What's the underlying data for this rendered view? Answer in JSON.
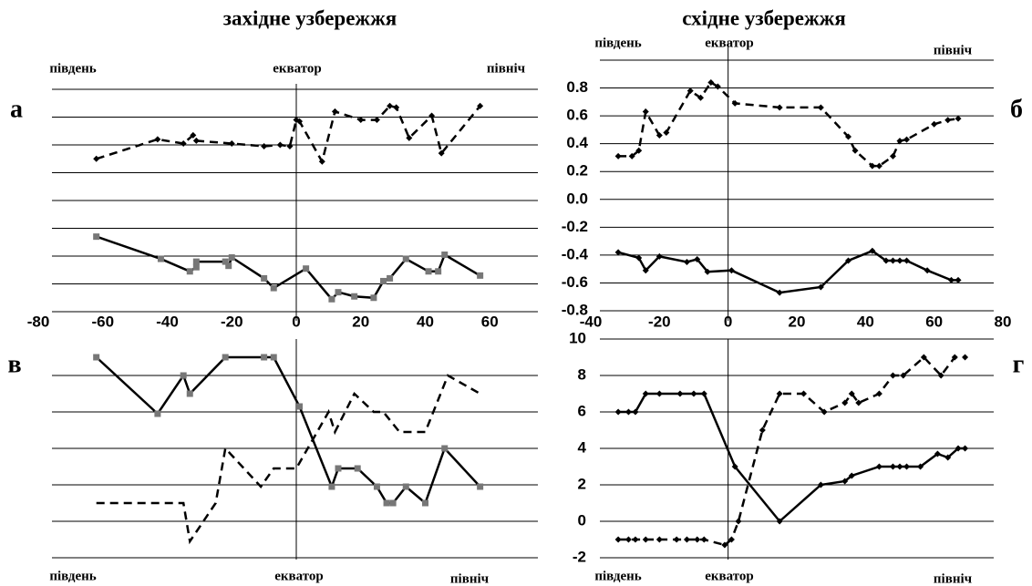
{
  "column_titles": [
    "західне узбережжя",
    "східне узбережжя"
  ],
  "chart_data": [
    {
      "type": "line",
      "label": "а",
      "annotations": [
        "південь",
        "екватор",
        "північ"
      ],
      "xlim": [
        -80,
        80
      ],
      "xticks": [
        -80,
        -60,
        -40,
        -20,
        0,
        20,
        40,
        60
      ],
      "ylim": [
        -0.8,
        0.8
      ],
      "hgrid": [
        -0.8,
        -0.6,
        -0.4,
        -0.2,
        0,
        0.2,
        0.4,
        0.6,
        0.8
      ],
      "reference_x": 0,
      "series": [
        {
          "color": "#000000",
          "dash": true,
          "marker": "diamond",
          "x": [
            -62,
            -43,
            -35,
            -32,
            -31,
            -20,
            -10,
            -5,
            -2,
            0,
            1,
            8,
            12,
            20,
            25,
            29,
            31,
            35,
            42,
            45,
            57
          ],
          "values": [
            0.3,
            0.44,
            0.41,
            0.47,
            0.43,
            0.41,
            0.39,
            0.4,
            0.39,
            0.58,
            0.57,
            0.28,
            0.64,
            0.58,
            0.58,
            0.68,
            0.67,
            0.45,
            0.61,
            0.34,
            0.68
          ]
        },
        {
          "color": "#000000",
          "dash": false,
          "marker": "square",
          "x": [
            -62,
            -42,
            -33,
            -31,
            -31,
            -22,
            -21,
            -20,
            -10,
            -7,
            3,
            11,
            13,
            18,
            24,
            27,
            29,
            34,
            41,
            44,
            46,
            57
          ],
          "values": [
            -0.26,
            -0.42,
            -0.51,
            -0.48,
            -0.44,
            -0.44,
            -0.47,
            -0.41,
            -0.56,
            -0.63,
            -0.49,
            -0.71,
            -0.66,
            -0.69,
            -0.7,
            -0.58,
            -0.56,
            -0.42,
            -0.51,
            -0.51,
            -0.39,
            -0.54
          ]
        }
      ]
    },
    {
      "type": "line",
      "label": "б",
      "annotations": [
        "південь",
        "екватор",
        "північ"
      ],
      "xlim": [
        -40,
        80
      ],
      "xticks": [
        -40,
        -20,
        0,
        20,
        40,
        60,
        80
      ],
      "ylim": [
        -0.8,
        1.0
      ],
      "yticks": [
        -0.8,
        -0.6,
        -0.4,
        -0.2,
        {
          "value": 0,
          "label": "0.0"
        },
        0.2,
        0.4,
        0.6,
        0.8
      ],
      "reference_x": 0,
      "series": [
        {
          "color": "#000000",
          "dash": true,
          "marker": "diamond",
          "x": [
            -32,
            -28,
            -26,
            -24,
            -20,
            -18,
            -11,
            -8,
            -5,
            -3,
            2,
            15,
            27,
            35,
            37,
            42,
            44,
            48,
            50,
            52,
            60,
            64,
            67
          ],
          "values": [
            0.31,
            0.31,
            0.35,
            0.63,
            0.46,
            0.48,
            0.78,
            0.73,
            0.84,
            0.81,
            0.69,
            0.66,
            0.66,
            0.45,
            0.35,
            0.24,
            0.24,
            0.31,
            0.42,
            0.43,
            0.54,
            0.57,
            0.58
          ]
        },
        {
          "color": "#000000",
          "dash": false,
          "marker": "diamond",
          "x": [
            -32,
            -26,
            -24,
            -20,
            -12,
            -9,
            -6,
            1,
            15,
            27,
            35,
            42,
            46,
            48,
            50,
            52,
            58,
            65,
            67
          ],
          "values": [
            -0.38,
            -0.42,
            -0.51,
            -0.41,
            -0.45,
            -0.43,
            -0.52,
            -0.51,
            -0.67,
            -0.63,
            -0.44,
            -0.37,
            -0.44,
            -0.44,
            -0.44,
            -0.44,
            -0.51,
            -0.58,
            -0.58
          ]
        }
      ]
    },
    {
      "type": "line",
      "label": "в",
      "annotations": [
        "південь",
        "екватор",
        "північ"
      ],
      "xlim": [
        -80,
        80
      ],
      "ylim": [
        -2,
        10
      ],
      "hgrid": [
        -2,
        0,
        2,
        4,
        6,
        8
      ],
      "reference_x": 0,
      "series": [
        {
          "color": "#000000",
          "dash": false,
          "marker": "square",
          "x": [
            -62,
            -43,
            -35,
            -33,
            -22,
            -10,
            -7,
            1,
            11,
            13,
            19,
            25,
            28,
            30,
            34,
            40,
            46,
            57
          ],
          "values": [
            9,
            5.9,
            8,
            7,
            9,
            9,
            9,
            6.3,
            1.9,
            2.9,
            2.9,
            1.9,
            1,
            1,
            1.9,
            1,
            4,
            1.9
          ]
        },
        {
          "color": "#000000",
          "dash": true,
          "marker": "none",
          "x": [
            -62,
            -43,
            -35,
            -33,
            -25,
            -22,
            -11,
            -7,
            0,
            10,
            12,
            18,
            24,
            27,
            32,
            40,
            47,
            57
          ],
          "values": [
            1,
            1,
            1,
            -1.1,
            1,
            4,
            1.9,
            2.9,
            2.9,
            6,
            4.9,
            7,
            6,
            6,
            4.9,
            4.9,
            8,
            7
          ]
        }
      ]
    },
    {
      "type": "line",
      "label": "г",
      "annotations": [
        "південь",
        "екватор",
        "північ"
      ],
      "xlim": [
        -40,
        80
      ],
      "ylim": [
        -2,
        10
      ],
      "yticks": [
        -2,
        0,
        2,
        4,
        6,
        8,
        10
      ],
      "reference_x": 0,
      "series": [
        {
          "color": "#000000",
          "dash": true,
          "marker": "diamond",
          "x": [
            -32,
            -29,
            -27,
            -24,
            -20,
            -15,
            -12,
            -9,
            -7,
            -1,
            1,
            3,
            10,
            15,
            22,
            28,
            34,
            36,
            38,
            44,
            48,
            51,
            57,
            62,
            66,
            69
          ],
          "values": [
            -1,
            -1,
            -1,
            -1,
            -1,
            -1,
            -1,
            -1,
            -1,
            -1.3,
            -1,
            0,
            5,
            7,
            7,
            6,
            6.5,
            7,
            6.5,
            7,
            8,
            8,
            9,
            8,
            9,
            9
          ]
        },
        {
          "color": "#000000",
          "dash": false,
          "marker": "diamond",
          "x": [
            -32,
            -29,
            -27,
            -24,
            -20,
            -14,
            -10,
            -7,
            2,
            15,
            27,
            34,
            36,
            44,
            48,
            50,
            52,
            56,
            61,
            64,
            67,
            69
          ],
          "values": [
            6,
            6,
            6,
            7,
            7,
            7,
            7,
            7,
            3,
            0,
            2,
            2.2,
            2.5,
            3,
            3,
            3,
            3,
            3,
            3.7,
            3.5,
            4,
            4
          ]
        }
      ]
    }
  ]
}
